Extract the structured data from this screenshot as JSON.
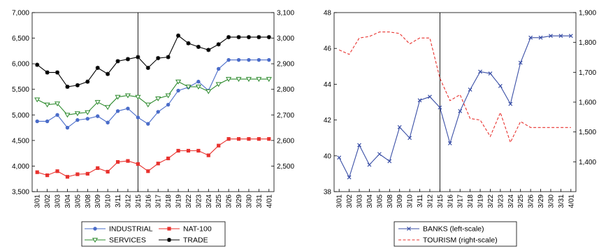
{
  "colors": {
    "industrial": "#4a6cc9",
    "nat100": "#e8322e",
    "services": "#2e8b2e",
    "trade": "#000000",
    "banks": "#3a4fa6",
    "tourism": "#e8322e"
  },
  "chart_data": [
    {
      "type": "line",
      "categories": [
        "3/01",
        "3/02",
        "3/03",
        "3/04",
        "3/05",
        "3/08",
        "3/09",
        "3/10",
        "3/11",
        "3/12",
        "3/15",
        "3/16",
        "3/17",
        "3/18",
        "3/19",
        "3/22",
        "3/23",
        "3/24",
        "3/25",
        "3/26",
        "3/29",
        "3/30",
        "3/31",
        "4/01"
      ],
      "left_axis": {
        "ylim": [
          3500,
          7000
        ],
        "ticks": [
          "3,500",
          "4,000",
          "4,500",
          "5,000",
          "5,500",
          "6,000",
          "6,500",
          "7,000"
        ]
      },
      "right_axis": {
        "ylim": [
          2400,
          3100
        ],
        "ticks": [
          "2,500",
          "2,600",
          "2,700",
          "2,800",
          "2,900",
          "3,000",
          "3,100"
        ]
      },
      "vline_at": "3/15",
      "grid": false,
      "legend_position": "bottom",
      "series": [
        {
          "name": "INDUSTRIAL",
          "axis": "right",
          "marker": "circle",
          "color_key": "industrial",
          "values": [
            2675,
            2675,
            2700,
            2650,
            2680,
            2685,
            2695,
            2670,
            2715,
            2725,
            2690,
            2665,
            2712,
            2740,
            2795,
            2808,
            2830,
            2795,
            2880,
            2915,
            2915,
            2915,
            2915,
            2915
          ]
        },
        {
          "name": "NAT-100",
          "axis": "left",
          "marker": "square",
          "color_key": "nat100",
          "values": [
            3880,
            3820,
            3900,
            3790,
            3840,
            3850,
            3960,
            3890,
            4080,
            4100,
            4040,
            3900,
            4050,
            4150,
            4300,
            4300,
            4300,
            4210,
            4400,
            4530,
            4530,
            4530,
            4530,
            4530
          ]
        },
        {
          "name": "SERVICES",
          "axis": "left",
          "marker": "triangle-down",
          "color_key": "services",
          "values": [
            5300,
            5200,
            5220,
            5000,
            5030,
            5050,
            5250,
            5150,
            5350,
            5380,
            5350,
            5200,
            5320,
            5380,
            5650,
            5550,
            5550,
            5460,
            5600,
            5700,
            5700,
            5700,
            5700,
            5700
          ]
        },
        {
          "name": "TRADE",
          "axis": "left",
          "marker": "star",
          "color_key": "trade",
          "values": [
            5980,
            5830,
            5830,
            5550,
            5580,
            5650,
            5920,
            5800,
            6050,
            6090,
            6130,
            5920,
            6110,
            6130,
            6550,
            6400,
            6330,
            6270,
            6380,
            6520,
            6520,
            6520,
            6520,
            6520
          ]
        }
      ]
    },
    {
      "type": "line",
      "categories": [
        "3/01",
        "3/02",
        "3/03",
        "3/04",
        "3/05",
        "3/08",
        "3/09",
        "3/10",
        "3/11",
        "3/12",
        "3/15",
        "3/16",
        "3/17",
        "3/18",
        "3/19",
        "3/22",
        "3/23",
        "3/24",
        "3/25",
        "3/26",
        "3/29",
        "3/30",
        "3/31",
        "4/01"
      ],
      "left_axis": {
        "ylim": [
          38,
          48
        ],
        "ticks": [
          "38",
          "40",
          "42",
          "44",
          "46",
          "48"
        ]
      },
      "right_axis": {
        "ylim": [
          1300,
          1900
        ],
        "ticks": [
          "1,400",
          "1,500",
          "1,600",
          "1,700",
          "1,800",
          "1,900"
        ]
      },
      "vline_at": "3/15",
      "grid": false,
      "legend_position": "bottom",
      "series": [
        {
          "name": "BANKS (left-scale)",
          "axis": "left",
          "marker": "x",
          "color_key": "banks",
          "values": [
            39.9,
            38.8,
            40.6,
            39.5,
            40.1,
            39.7,
            41.6,
            41.0,
            43.1,
            43.3,
            42.7,
            40.7,
            42.5,
            43.7,
            44.7,
            44.6,
            43.9,
            42.9,
            45.2,
            46.6,
            46.6,
            46.7,
            46.7,
            46.7
          ]
        },
        {
          "name": "TOURISM (right-scale)",
          "axis": "right",
          "marker": "none",
          "dashed": true,
          "color_key": "tourism",
          "values": [
            1775,
            1760,
            1815,
            1820,
            1835,
            1835,
            1830,
            1795,
            1815,
            1815,
            1680,
            1605,
            1625,
            1545,
            1540,
            1485,
            1565,
            1465,
            1535,
            1515,
            1515,
            1515,
            1515,
            1515
          ]
        }
      ]
    }
  ]
}
